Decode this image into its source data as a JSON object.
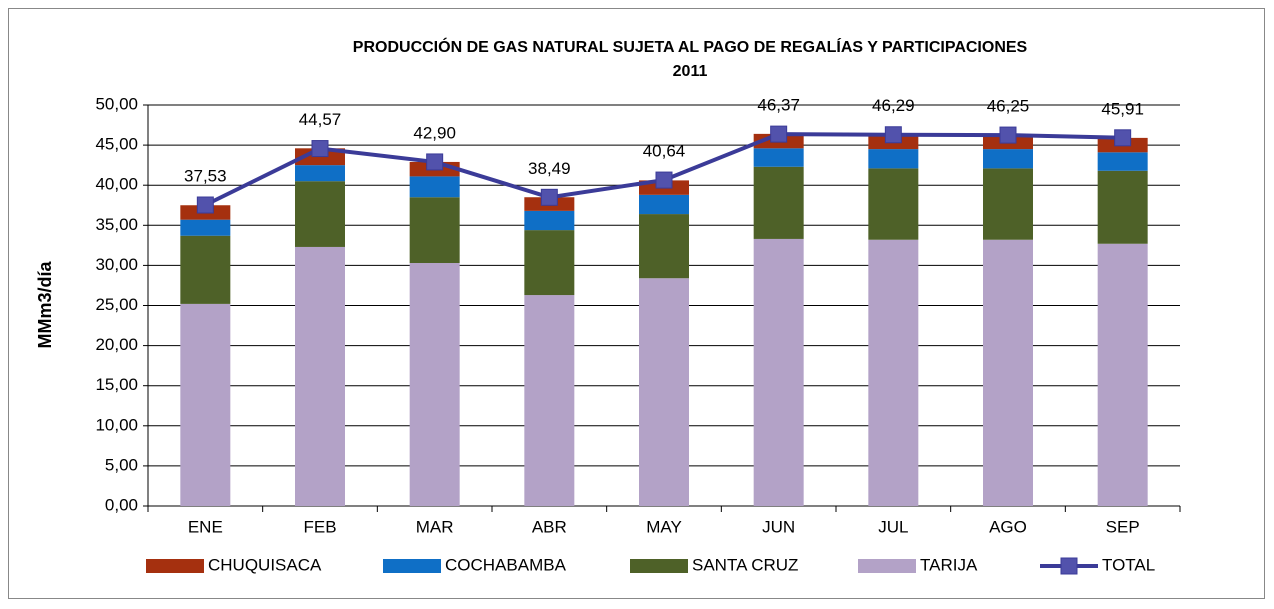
{
  "chart_data": {
    "type": "bar",
    "title": "PRODUCCIÓN DE GAS NATURAL SUJETA AL PAGO DE REGALÍAS Y PARTICIPACIONES",
    "subtitle": "2011",
    "y_label": "MMm3/día",
    "categories": [
      "ENE",
      "FEB",
      "MAR",
      "ABR",
      "MAY",
      "JUN",
      "JUL",
      "AGO",
      "SEP"
    ],
    "series": [
      {
        "name": "CHUQUISACA",
        "color": "#a5300f",
        "values": [
          1.8,
          2.1,
          1.8,
          1.7,
          1.8,
          1.8,
          1.8,
          1.8,
          1.8
        ]
      },
      {
        "name": "COCHABAMBA",
        "color": "#0f6fc6",
        "values": [
          2.0,
          2.0,
          2.6,
          2.4,
          2.4,
          2.3,
          2.4,
          2.4,
          2.3
        ]
      },
      {
        "name": "SANTA CRUZ",
        "color": "#4e6128",
        "values": [
          8.5,
          8.2,
          8.2,
          8.1,
          8.0,
          9.0,
          8.9,
          8.9,
          9.1
        ]
      },
      {
        "name": "TARIJA",
        "color": "#b3a2c7",
        "values": [
          25.2,
          32.3,
          30.3,
          26.3,
          28.4,
          33.3,
          33.2,
          33.2,
          32.7
        ]
      },
      {
        "name": "TOTAL",
        "color": "#3b3b98",
        "line": true,
        "values": [
          37.53,
          44.57,
          42.9,
          38.49,
          40.64,
          46.37,
          46.29,
          46.25,
          45.91
        ],
        "value_labels": [
          "37,53",
          "44,57",
          "42,90",
          "38,49",
          "40,64",
          "46,37",
          "46,29",
          "46,25",
          "45,91"
        ]
      }
    ],
    "ylim": [
      0,
      50
    ],
    "yticks": [
      {
        "value": 0,
        "label": "0,00"
      },
      {
        "value": 5,
        "label": "5,00"
      },
      {
        "value": 10,
        "label": "10,00"
      },
      {
        "value": 15,
        "label": "15,00"
      },
      {
        "value": 20,
        "label": "20,00"
      },
      {
        "value": 25,
        "label": "25,00"
      },
      {
        "value": 30,
        "label": "30,00"
      },
      {
        "value": 35,
        "label": "35,00"
      },
      {
        "value": 40,
        "label": "40,00"
      },
      {
        "value": 45,
        "label": "45,00"
      },
      {
        "value": 50,
        "label": "50,00"
      }
    ],
    "grid": true,
    "legend": "bottom"
  }
}
